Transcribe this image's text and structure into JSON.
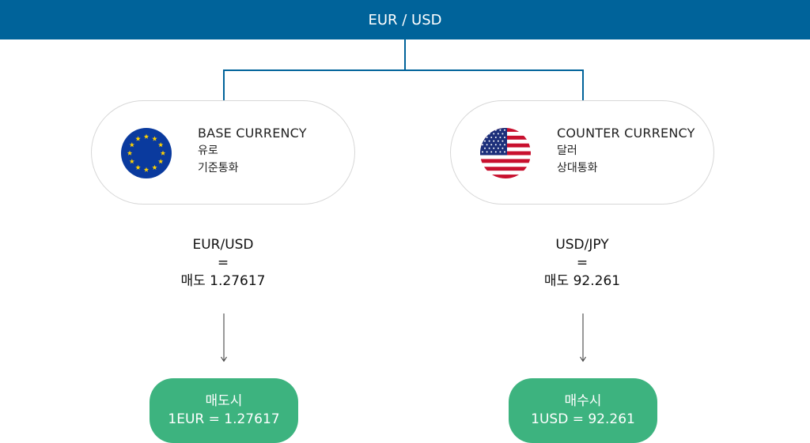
{
  "header": {
    "title": "EUR / USD"
  },
  "base": {
    "title": "BASE CURRENCY",
    "name": "유로",
    "role": "기준통화",
    "flag_icon": "eu-flag-icon"
  },
  "counter": {
    "title": "COUNTER CURRENCY",
    "name": "달러",
    "role": "상대통화",
    "flag_icon": "us-flag-icon"
  },
  "left_rate": {
    "pair": "EUR/USD",
    "equals": "=",
    "value": "매도 1.27617"
  },
  "right_rate": {
    "pair": "USD/JPY",
    "equals": "=",
    "value": "매도 92.261"
  },
  "left_result": {
    "label": "매도시",
    "value": "1EUR = 1.27617"
  },
  "right_result": {
    "label": "매수시",
    "value": "1USD = 92.261"
  },
  "colors": {
    "header": "#00639a",
    "pill": "#3db37f",
    "card_border": "#d7d7d7",
    "eu_blue": "#0a3a9e",
    "eu_star": "#ffd200",
    "us_red": "#c8102e",
    "us_blue": "#1c2f7a"
  }
}
